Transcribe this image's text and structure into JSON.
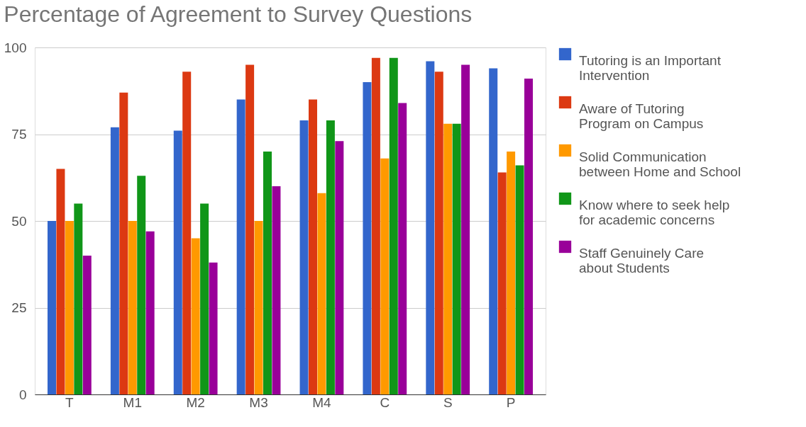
{
  "chart_data": {
    "type": "bar",
    "title": "Percentage of Agreement to Survey Questions",
    "categories": [
      "T",
      "M1",
      "M2",
      "M3",
      "M4",
      "C",
      "S",
      "P"
    ],
    "series": [
      {
        "name": "Tutoring is an Important Intervention",
        "color": "#3366cc",
        "values": [
          50,
          77,
          76,
          85,
          79,
          90,
          96,
          94
        ]
      },
      {
        "name": "Aware of Tutoring Program on Campus",
        "color": "#dc3912",
        "values": [
          65,
          87,
          93,
          95,
          85,
          97,
          93,
          64
        ]
      },
      {
        "name": "Solid Communication between Home and School",
        "color": "#ff9900",
        "values": [
          50,
          50,
          45,
          50,
          58,
          68,
          78,
          70
        ]
      },
      {
        "name": "Know where to seek help for academic concerns",
        "color": "#109618",
        "values": [
          55,
          63,
          55,
          70,
          79,
          97,
          78,
          66
        ]
      },
      {
        "name": "Staff Genuinely Care about Students",
        "color": "#990099",
        "values": [
          40,
          47,
          38,
          60,
          73,
          84,
          95,
          91
        ]
      }
    ],
    "ylim": [
      0,
      100
    ],
    "yticks": [
      0,
      25,
      50,
      75,
      100
    ],
    "grid": "y",
    "legend": "right"
  }
}
